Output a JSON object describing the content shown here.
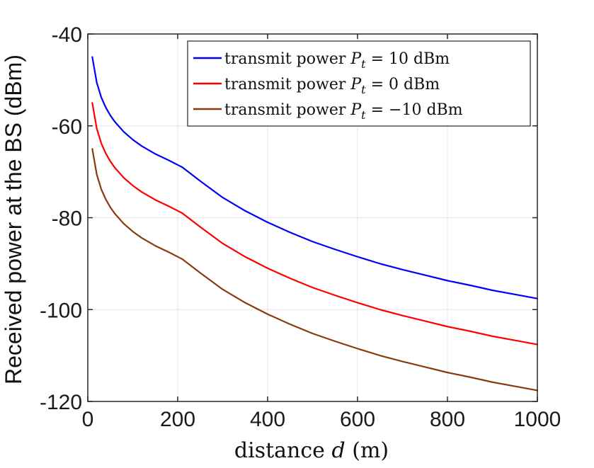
{
  "chart_data": {
    "type": "line",
    "title": "",
    "xlabel": "distance d (m)",
    "ylabel": "Received power at the BS (dBm)",
    "xlim": [
      0,
      1000
    ],
    "ylim": [
      -120,
      -40
    ],
    "xticks": [
      0,
      200,
      400,
      600,
      800,
      1000
    ],
    "yticks": [
      -40,
      -60,
      -80,
      -100,
      -120
    ],
    "xtick_labels": [
      "0",
      "200",
      "400",
      "600",
      "800",
      "1000"
    ],
    "ytick_labels": [
      "-40",
      "-60",
      "-80",
      "-100",
      "-120"
    ],
    "grid": true,
    "legend_position": "top-right",
    "x": [
      10,
      20,
      30,
      40,
      50,
      60,
      80,
      100,
      120,
      150,
      180,
      210,
      250,
      300,
      350,
      400,
      450,
      500,
      550,
      600,
      650,
      700,
      750,
      800,
      850,
      900,
      950,
      1000
    ],
    "series": [
      {
        "name": "transmit power Pt = 10 dBm",
        "color": "#0000ff",
        "values": [
          -45,
          -50.6,
          -53.8,
          -56,
          -57.7,
          -59.1,
          -61.3,
          -63,
          -64.4,
          -66.1,
          -67.5,
          -69,
          -72,
          -75.6,
          -78.5,
          -81,
          -83.2,
          -85.2,
          -86.9,
          -88.5,
          -90,
          -91.3,
          -92.5,
          -93.7,
          -94.7,
          -95.8,
          -96.7,
          -97.6
        ]
      },
      {
        "name": "transmit power Pt = 0 dBm",
        "color": "#ff0000",
        "values": [
          -55,
          -60.6,
          -63.8,
          -66,
          -67.7,
          -69.1,
          -71.3,
          -73,
          -74.4,
          -76.1,
          -77.5,
          -79,
          -82,
          -85.6,
          -88.5,
          -91,
          -93.2,
          -95.2,
          -96.9,
          -98.5,
          -100,
          -101.3,
          -102.5,
          -103.7,
          -104.7,
          -105.8,
          -106.7,
          -107.6
        ]
      },
      {
        "name": "transmit power Pt = -10 dBm",
        "color": "#8b3a0f",
        "values": [
          -65,
          -70.6,
          -73.8,
          -76,
          -77.7,
          -79.1,
          -81.3,
          -83,
          -84.4,
          -86.1,
          -87.5,
          -89,
          -92,
          -95.6,
          -98.5,
          -101,
          -103.2,
          -105.2,
          -106.9,
          -108.5,
          -110,
          -111.3,
          -112.5,
          -113.7,
          -114.7,
          -115.8,
          -116.7,
          -117.6
        ]
      }
    ],
    "legend_entries": [
      {
        "prefix": "transmit power ",
        "symbol": "P",
        "sub": "t",
        "suffix": " = 10 dBm"
      },
      {
        "prefix": "transmit power ",
        "symbol": "P",
        "sub": "t",
        "suffix": " = 0 dBm"
      },
      {
        "prefix": "transmit power ",
        "symbol": "P",
        "sub": "t",
        "suffix": " = −10 dBm"
      }
    ],
    "xlabel_parts": {
      "pre": "distance ",
      "var": "d",
      "post": " (m)"
    }
  }
}
